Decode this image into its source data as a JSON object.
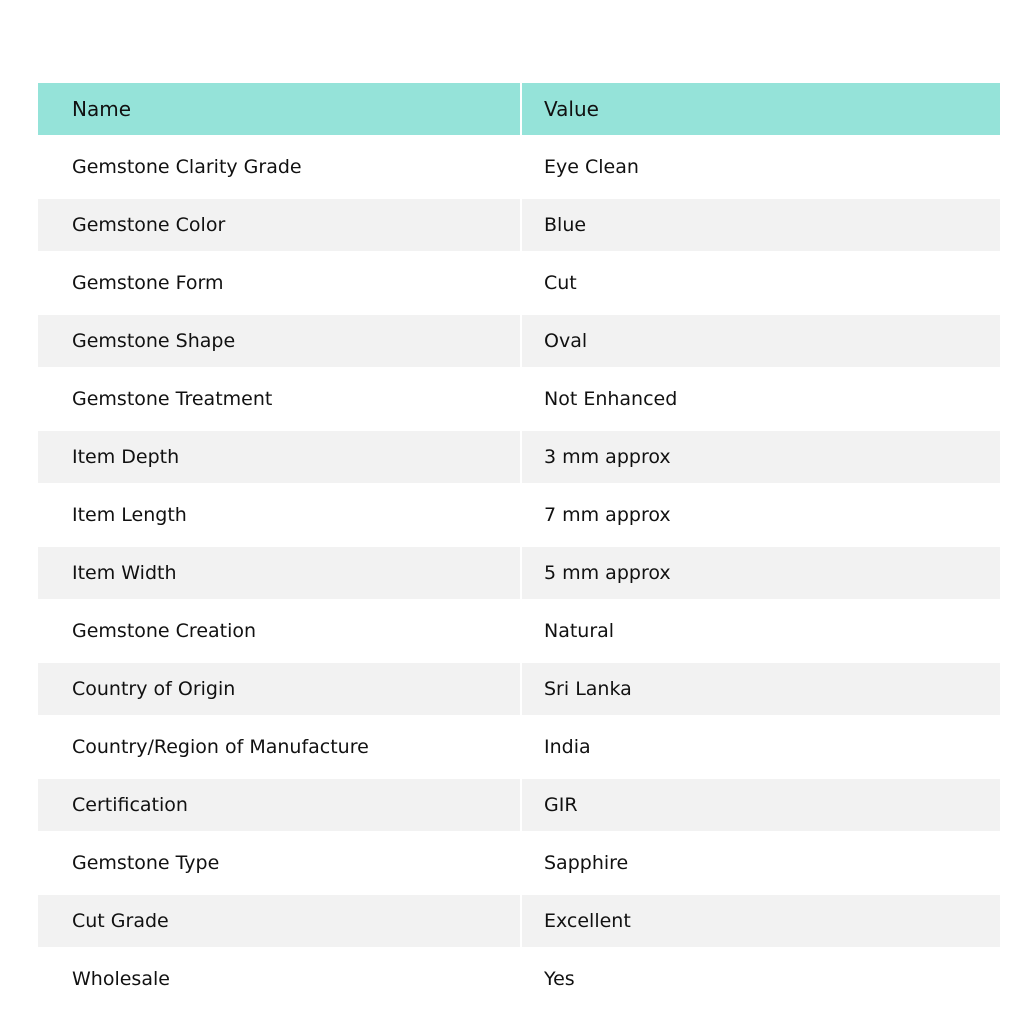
{
  "table": {
    "headers": [
      "Name",
      "Value"
    ],
    "rows": [
      [
        "Gemstone Clarity Grade",
        "Eye Clean"
      ],
      [
        "Gemstone Color",
        "Blue"
      ],
      [
        "Gemstone Form",
        "Cut"
      ],
      [
        "Gemstone Shape",
        "Oval"
      ],
      [
        "Gemstone Treatment",
        "Not Enhanced"
      ],
      [
        "Item Depth",
        "3 mm approx"
      ],
      [
        "Item Length",
        "7 mm approx"
      ],
      [
        "Item Width",
        "5 mm approx"
      ],
      [
        "Gemstone Creation",
        "Natural"
      ],
      [
        "Country of Origin",
        "Sri Lanka"
      ],
      [
        "Country/Region of Manufacture",
        "India"
      ],
      [
        "Certification",
        "GIR"
      ],
      [
        "Gemstone Type",
        "Sapphire"
      ],
      [
        "Cut Grade",
        "Excellent"
      ],
      [
        "Wholesale",
        "Yes"
      ]
    ]
  },
  "colors": {
    "header": "#95e3d9",
    "stripe": "#f2f2f2"
  }
}
